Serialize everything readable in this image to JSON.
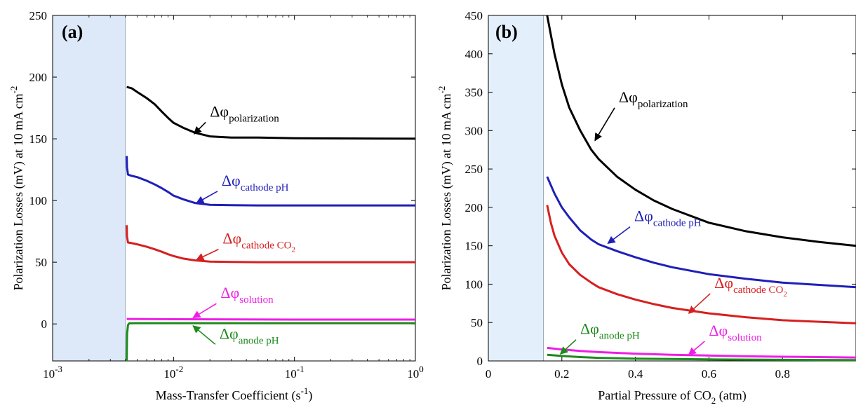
{
  "chart_data": [
    {
      "id": "a",
      "type": "line",
      "panel_label": "(a)",
      "xlabel": {
        "main": "Mass-Transfer Coefficient (s",
        "sup": "-1",
        "end": ")"
      },
      "ylabel": {
        "main": "Polarization Losses (mV) at 10 mA cm",
        "sup": "-2"
      },
      "xscale": "log",
      "xlim": [
        0.001,
        1
      ],
      "ylim": [
        -30,
        250
      ],
      "xticks": [
        {
          "value": 0.001,
          "base": "10",
          "exp": "-3"
        },
        {
          "value": 0.01,
          "base": "10",
          "exp": "-2"
        },
        {
          "value": 0.1,
          "base": "10",
          "exp": "-1"
        },
        {
          "value": 1,
          "base": "10",
          "exp": "0"
        }
      ],
      "yticks": [
        0,
        50,
        100,
        150,
        200,
        250
      ],
      "shaded_region": {
        "x": [
          0.001,
          0.004
        ],
        "color": "#dde9f8"
      },
      "series": [
        {
          "name_main": "Δφ",
          "name_sub": "polarization",
          "color": "#000000",
          "x": [
            0.0041,
            0.0045,
            0.005,
            0.006,
            0.007,
            0.008,
            0.009,
            0.01,
            0.012,
            0.015,
            0.02,
            0.03,
            0.05,
            0.1,
            0.2,
            0.5,
            1
          ],
          "y": [
            192,
            191,
            188,
            183,
            178,
            172,
            167,
            163,
            159,
            155,
            152,
            151,
            151,
            150.5,
            150.3,
            150.2,
            150.1
          ],
          "annotation": {
            "text_x": 0.02,
            "text_y": 168,
            "arrow_x": 0.0148,
            "arrow_y": 154
          }
        },
        {
          "name_main": "Δφ",
          "name_sub": "cathode pH",
          "color": "#1f1fb8",
          "x": [
            0.0041,
            0.00412,
            0.0042,
            0.0045,
            0.005,
            0.006,
            0.007,
            0.008,
            0.009,
            0.01,
            0.012,
            0.015,
            0.02,
            0.03,
            0.05,
            0.1,
            0.2,
            0.5,
            1
          ],
          "y": [
            136,
            127,
            121,
            120,
            119,
            116,
            113,
            110,
            107,
            104,
            101,
            98,
            96.5,
            96.2,
            96,
            96,
            96,
            96,
            96
          ],
          "annotation": {
            "text_x": 0.025,
            "text_y": 112,
            "arrow_x": 0.0155,
            "arrow_y": 98
          }
        },
        {
          "name_main": "Δφ",
          "name_sub": "cathode CO",
          "name_sub2": "2",
          "color": "#d62020",
          "x": [
            0.0041,
            0.00412,
            0.0042,
            0.0045,
            0.005,
            0.006,
            0.007,
            0.008,
            0.009,
            0.01,
            0.012,
            0.015,
            0.02,
            0.03,
            0.05,
            0.1,
            0.2,
            0.5,
            1
          ],
          "y": [
            80,
            71,
            66,
            65.5,
            64.5,
            62.5,
            60.5,
            58.5,
            56.5,
            55,
            53,
            51.5,
            50.5,
            50.2,
            50,
            50,
            50,
            50,
            50
          ],
          "annotation": {
            "text_x": 0.0255,
            "text_y": 65,
            "arrow_x": 0.0155,
            "arrow_y": 52
          }
        },
        {
          "name_main": "Δφ",
          "name_sub": "solution",
          "color": "#ee1ee6",
          "x": [
            0.0041,
            0.01,
            0.1,
            1
          ],
          "y": [
            4,
            3.8,
            3.5,
            3.5
          ],
          "annotation": {
            "text_x": 0.0245,
            "text_y": 21,
            "arrow_x": 0.0145,
            "arrow_y": 5
          }
        },
        {
          "name_main": "Δφ",
          "name_sub": "anode pH",
          "color": "#1c8a1c",
          "x": [
            0.0041,
            0.00413,
            0.0042,
            0.0043,
            0.005,
            0.01,
            0.1,
            1
          ],
          "y": [
            -30,
            -8,
            -1,
            0.5,
            0.6,
            0.6,
            0.6,
            0.6
          ],
          "annotation": {
            "text_x": 0.024,
            "text_y": -12,
            "arrow_x": 0.0145,
            "arrow_y": -1.5
          }
        }
      ]
    },
    {
      "id": "b",
      "type": "line",
      "panel_label": "(b)",
      "xlabel": {
        "main": "Partial Pressure of CO",
        "sub": "2",
        "end": " (atm)"
      },
      "ylabel": {
        "main": "Polarization Losses (mV) at 10 mA cm",
        "sup": "-2"
      },
      "xscale": "linear",
      "xlim": [
        0,
        1
      ],
      "ylim": [
        0,
        450
      ],
      "xticks": [
        0,
        0.2,
        0.4,
        0.6,
        0.8
      ],
      "yticks": [
        0,
        50,
        100,
        150,
        200,
        250,
        300,
        350,
        400,
        450
      ],
      "shaded_region": {
        "x": [
          0,
          0.15
        ],
        "color": "#e3f0fb"
      },
      "series": [
        {
          "name_main": "Δφ",
          "name_sub": "polarization",
          "color": "#000000",
          "x": [
            0.16,
            0.18,
            0.2,
            0.22,
            0.25,
            0.28,
            0.3,
            0.35,
            0.4,
            0.45,
            0.5,
            0.6,
            0.7,
            0.8,
            0.9,
            1
          ],
          "y": [
            450,
            400,
            360,
            330,
            300,
            275,
            263,
            240,
            223,
            209,
            198,
            180,
            169,
            161,
            155,
            150
          ],
          "annotation": {
            "text_x": 0.355,
            "text_y": 337,
            "arrow_x": 0.29,
            "arrow_y": 287
          }
        },
        {
          "name_main": "Δφ",
          "name_sub": "cathode pH",
          "color": "#1f1fb8",
          "x": [
            0.16,
            0.18,
            0.2,
            0.22,
            0.25,
            0.28,
            0.3,
            0.35,
            0.4,
            0.45,
            0.5,
            0.6,
            0.7,
            0.8,
            0.9,
            1
          ],
          "y": [
            240,
            218,
            200,
            187,
            170,
            158,
            152,
            143,
            135,
            128,
            122,
            113,
            107,
            102,
            99,
            96
          ],
          "annotation": {
            "text_x": 0.397,
            "text_y": 182,
            "arrow_x": 0.325,
            "arrow_y": 153
          }
        },
        {
          "name_main": "Δφ",
          "name_sub": "cathode CO",
          "name_sub2": "2",
          "color": "#d62020",
          "x": [
            0.16,
            0.17,
            0.18,
            0.2,
            0.22,
            0.25,
            0.28,
            0.3,
            0.35,
            0.4,
            0.45,
            0.5,
            0.6,
            0.7,
            0.8,
            0.9,
            1
          ],
          "y": [
            203,
            180,
            163,
            141,
            126,
            112,
            102,
            96,
            87,
            80,
            74,
            69,
            62,
            57,
            53,
            51,
            49
          ],
          "annotation": {
            "text_x": 0.615,
            "text_y": 95,
            "arrow_x": 0.545,
            "arrow_y": 62
          }
        },
        {
          "name_main": "Δφ",
          "name_sub": "solution",
          "color": "#ee1ee6",
          "x": [
            0.16,
            0.2,
            0.25,
            0.3,
            0.4,
            0.5,
            0.6,
            0.7,
            0.8,
            0.9,
            1
          ],
          "y": [
            17,
            15,
            13,
            11.5,
            9.5,
            8,
            7,
            6,
            5.5,
            5,
            4.5
          ],
          "annotation": {
            "text_x": 0.6,
            "text_y": 33,
            "arrow_x": 0.545,
            "arrow_y": 8
          }
        },
        {
          "name_main": "Δφ",
          "name_sub": "anode pH",
          "color": "#1c8a1c",
          "x": [
            0.16,
            0.2,
            0.25,
            0.3,
            0.4,
            0.5,
            0.6,
            0.7,
            0.8,
            0.9,
            1
          ],
          "y": [
            8,
            6.5,
            5,
            4,
            3,
            2.5,
            2,
            1.7,
            1.5,
            1.3,
            1.2
          ],
          "annotation": {
            "text_x": 0.25,
            "text_y": 35,
            "arrow_x": 0.196,
            "arrow_y": 9
          }
        }
      ]
    }
  ]
}
